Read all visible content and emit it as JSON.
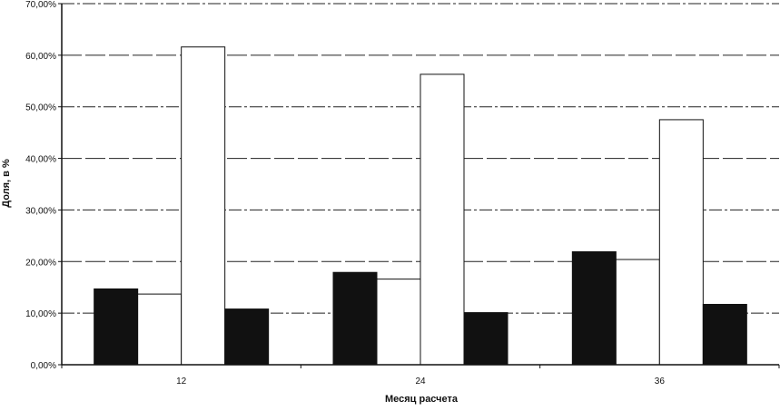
{
  "chart_data": {
    "type": "bar",
    "title": "",
    "xlabel": "Месяц расчета",
    "ylabel": "Доля, в %",
    "ylim": [
      0,
      70
    ],
    "y_ticks": [
      "0,00%",
      "10,00%",
      "20,00%",
      "30,00%",
      "40,00%",
      "50,00%",
      "60,00%",
      "70,00%"
    ],
    "y_tick_values": [
      0,
      10,
      20,
      30,
      40,
      50,
      60,
      70
    ],
    "categories": [
      "12",
      "24",
      "36"
    ],
    "grid": true,
    "legend": "none",
    "series": [
      {
        "values": [
          14.7,
          17.9,
          21.9
        ],
        "color": "#111111"
      },
      {
        "values": [
          13.7,
          16.6,
          20.4
        ],
        "color": "#ffffff"
      },
      {
        "values": [
          61.6,
          56.3,
          47.5
        ],
        "color": "#ffffff"
      },
      {
        "values": [
          10.8,
          10.1,
          11.7
        ],
        "color": "#111111"
      }
    ]
  }
}
